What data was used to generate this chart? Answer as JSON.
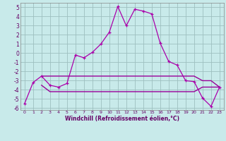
{
  "xlabel": "Windchill (Refroidissement éolien,°C)",
  "bg_color": "#c8eaea",
  "grid_color": "#9dbfbf",
  "line_color_main": "#aa00aa",
  "line_color_flat": "#990099",
  "xlim": [
    -0.5,
    23.5
  ],
  "ylim": [
    -6.2,
    5.5
  ],
  "x_main": [
    0,
    1,
    2,
    3,
    4,
    5,
    6,
    7,
    8,
    9,
    10,
    11,
    12,
    13,
    14,
    15,
    16,
    17,
    18,
    19,
    20,
    21,
    22,
    23
  ],
  "y_main": [
    -5.5,
    -3.2,
    -2.5,
    -3.5,
    -3.7,
    -3.3,
    -0.2,
    -0.5,
    0.1,
    1.0,
    2.3,
    5.1,
    3.0,
    4.8,
    4.6,
    4.3,
    1.1,
    -0.9,
    -1.3,
    -3.0,
    -3.1,
    -4.9,
    -5.8,
    -3.7
  ],
  "x_flat1": [
    2,
    3,
    4,
    5,
    6,
    7,
    8,
    9,
    10,
    11,
    12,
    13,
    14,
    15,
    16,
    17,
    18,
    19,
    20,
    21,
    22,
    23
  ],
  "y_flat1": [
    -2.5,
    -2.5,
    -2.5,
    -2.5,
    -2.5,
    -2.5,
    -2.5,
    -2.5,
    -2.5,
    -2.5,
    -2.5,
    -2.5,
    -2.5,
    -2.5,
    -2.5,
    -2.5,
    -2.5,
    -2.5,
    -2.5,
    -3.0,
    -3.0,
    -3.7
  ],
  "x_flat2": [
    2,
    3,
    4,
    5,
    6,
    7,
    8,
    9,
    10,
    11,
    12,
    13,
    14,
    15,
    16,
    17,
    18,
    19,
    20,
    21,
    22,
    23
  ],
  "y_flat2": [
    -3.5,
    -4.2,
    -4.2,
    -4.2,
    -4.2,
    -4.2,
    -4.2,
    -4.2,
    -4.2,
    -4.2,
    -4.2,
    -4.2,
    -4.2,
    -4.2,
    -4.2,
    -4.2,
    -4.2,
    -4.2,
    -4.2,
    -3.7,
    -3.7,
    -3.7
  ],
  "xticks": [
    0,
    1,
    2,
    3,
    4,
    5,
    6,
    7,
    8,
    9,
    10,
    11,
    12,
    13,
    14,
    15,
    16,
    17,
    18,
    19,
    20,
    21,
    22,
    23
  ],
  "yticks": [
    -6,
    -5,
    -4,
    -3,
    -2,
    -1,
    0,
    1,
    2,
    3,
    4,
    5
  ]
}
